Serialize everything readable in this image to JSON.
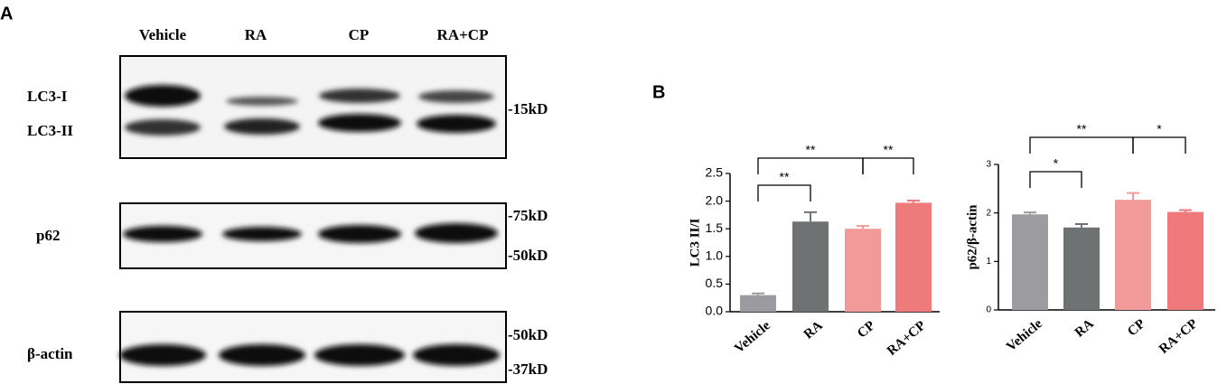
{
  "panels": [
    "A",
    "B"
  ],
  "blot": {
    "lanes": [
      "Vehicle",
      "RA",
      "CP",
      "RA+CP"
    ],
    "rows": [
      {
        "labels": [
          "LC3-I",
          "LC3-II"
        ],
        "markers": [
          "-15kD"
        ]
      },
      {
        "labels": [
          "p62"
        ],
        "markers": [
          "-75kD",
          "-50kD"
        ]
      },
      {
        "labels": [
          "β-actin"
        ],
        "markers": [
          "-50kD",
          "-37kD"
        ]
      }
    ]
  },
  "chart_data": [
    {
      "type": "bar",
      "ylabel": "LC3 II/I",
      "categories": [
        "Vehicle",
        "RA",
        "CP",
        "RA+CP"
      ],
      "values": [
        0.3,
        1.63,
        1.5,
        1.97
      ],
      "errors": [
        0.03,
        0.17,
        0.05,
        0.04
      ],
      "colors": [
        "#9b9ba0",
        "#6f7273",
        "#f29a9a",
        "#ef7a7c"
      ],
      "ylim": [
        0,
        2.5
      ],
      "yticks": [
        {
          "value": 0,
          "label": "0.0"
        },
        0.5,
        {
          "value": 1,
          "label": "1.0"
        },
        1.5,
        {
          "value": 2,
          "label": "2.0"
        },
        2.5
      ],
      "annotations": [
        "**",
        "**",
        "**"
      ]
    },
    {
      "type": "bar",
      "ylabel": "p62/β-actin",
      "categories": [
        "Vehicle",
        "RA",
        "CP",
        "RA+CP"
      ],
      "values": [
        1.97,
        1.7,
        2.27,
        2.02
      ],
      "errors": [
        0.04,
        0.07,
        0.14,
        0.04
      ],
      "colors": [
        "#9b9ba0",
        "#6f7273",
        "#f29a9a",
        "#ef7a7c"
      ],
      "ylim": [
        0,
        3
      ],
      "yticks": [
        0,
        1,
        2,
        3
      ],
      "annotations": [
        "*",
        "**",
        "*"
      ]
    }
  ]
}
